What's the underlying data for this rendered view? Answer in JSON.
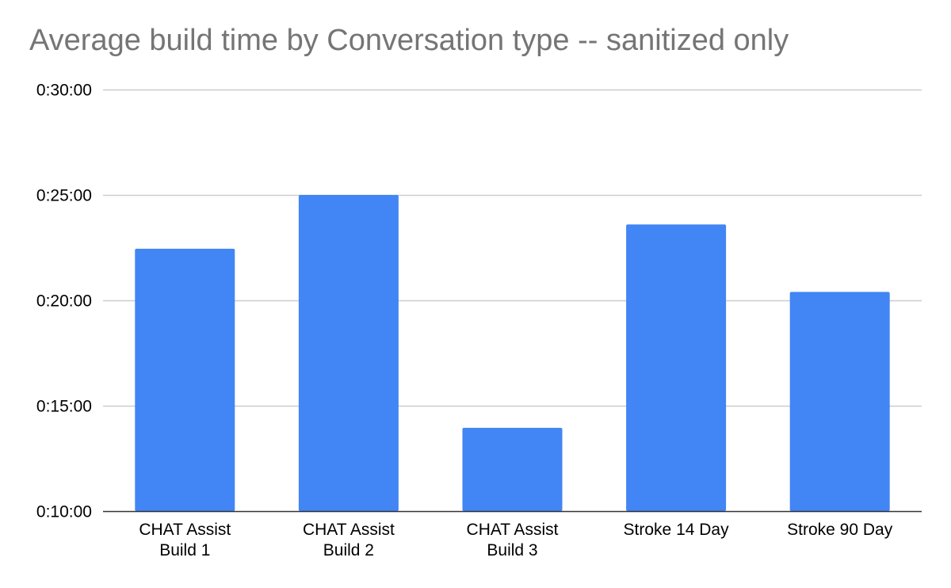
{
  "chart_data": {
    "type": "bar",
    "title": "Average build time by Conversation type -- sanitized only",
    "xlabel": "",
    "ylabel": "",
    "categories": [
      [
        "CHAT Assist",
        "Build 1"
      ],
      [
        "CHAT Assist",
        "Build 2"
      ],
      [
        "CHAT Assist",
        "Build 3"
      ],
      [
        "Stroke 14 Day"
      ],
      [
        "Stroke 90 Day"
      ]
    ],
    "series": [
      {
        "values_seconds": [
          1347,
          1500,
          837,
          1416,
          1224
        ],
        "color": "#4285f4"
      }
    ],
    "ylim_seconds": [
      600,
      1800
    ],
    "y_ticks": [
      "0:10:00",
      "0:15:00",
      "0:20:00",
      "0:25:00",
      "0:30:00"
    ],
    "y_tick_values_seconds": [
      600,
      900,
      1200,
      1500,
      1800
    ],
    "grid": true,
    "legend": "none",
    "gridline_color": "#cccccc",
    "baseline_color": "#333333"
  }
}
